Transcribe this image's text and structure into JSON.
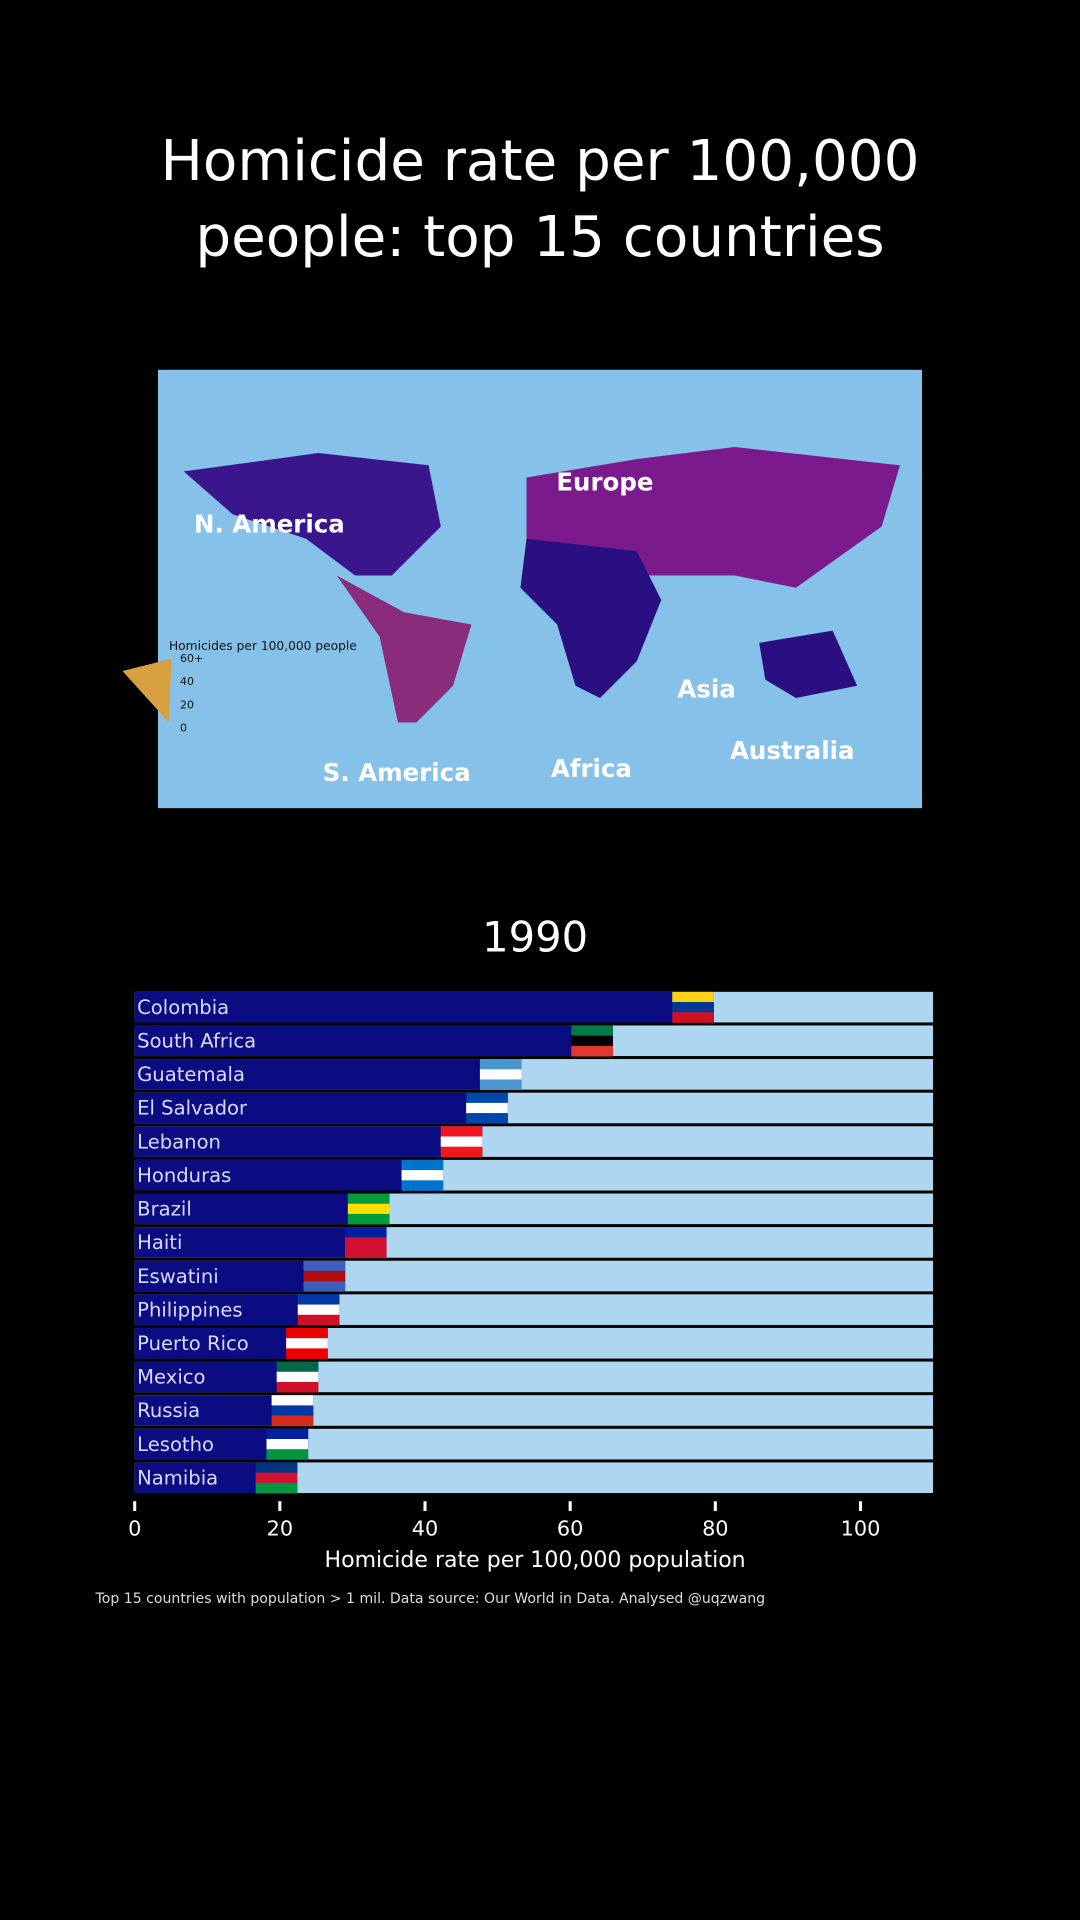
{
  "title": "Homicide rate per 100,000 people: top 15 countries",
  "map": {
    "legend_title": "Homicides per 100,000 people",
    "legend_ticks": [
      "60+",
      "40",
      "20",
      "0"
    ],
    "labels": [
      "N. America",
      "Europe",
      "Asia",
      "Australia",
      "Africa",
      "S. America"
    ]
  },
  "chart_data": {
    "type": "bar",
    "orientation": "horizontal",
    "title": "1990",
    "categories": [
      "Colombia",
      "South Africa",
      "Guatemala",
      "El Salvador",
      "Lebanon",
      "Honduras",
      "Brazil",
      "Haiti",
      "Eswatini",
      "Philippines",
      "Puerto Rico",
      "Mexico",
      "Russia",
      "Lesotho",
      "Namibia"
    ],
    "values": [
      79.8,
      65.9,
      53.3,
      51.4,
      47.9,
      42.5,
      35.1,
      34.7,
      29.0,
      28.2,
      26.6,
      25.3,
      24.6,
      23.9,
      22.4
    ],
    "color": "#0b0b82",
    "track_color": "#aed6f1",
    "xlim": [
      0,
      110
    ],
    "xticks": [
      0,
      20,
      40,
      60,
      80,
      100
    ],
    "xlabel": "Homicide rate per 100,000 population"
  },
  "footnote": "Top 15 countries with population > 1 mil. Data source: Our World in Data. Analysed @uqzwang"
}
